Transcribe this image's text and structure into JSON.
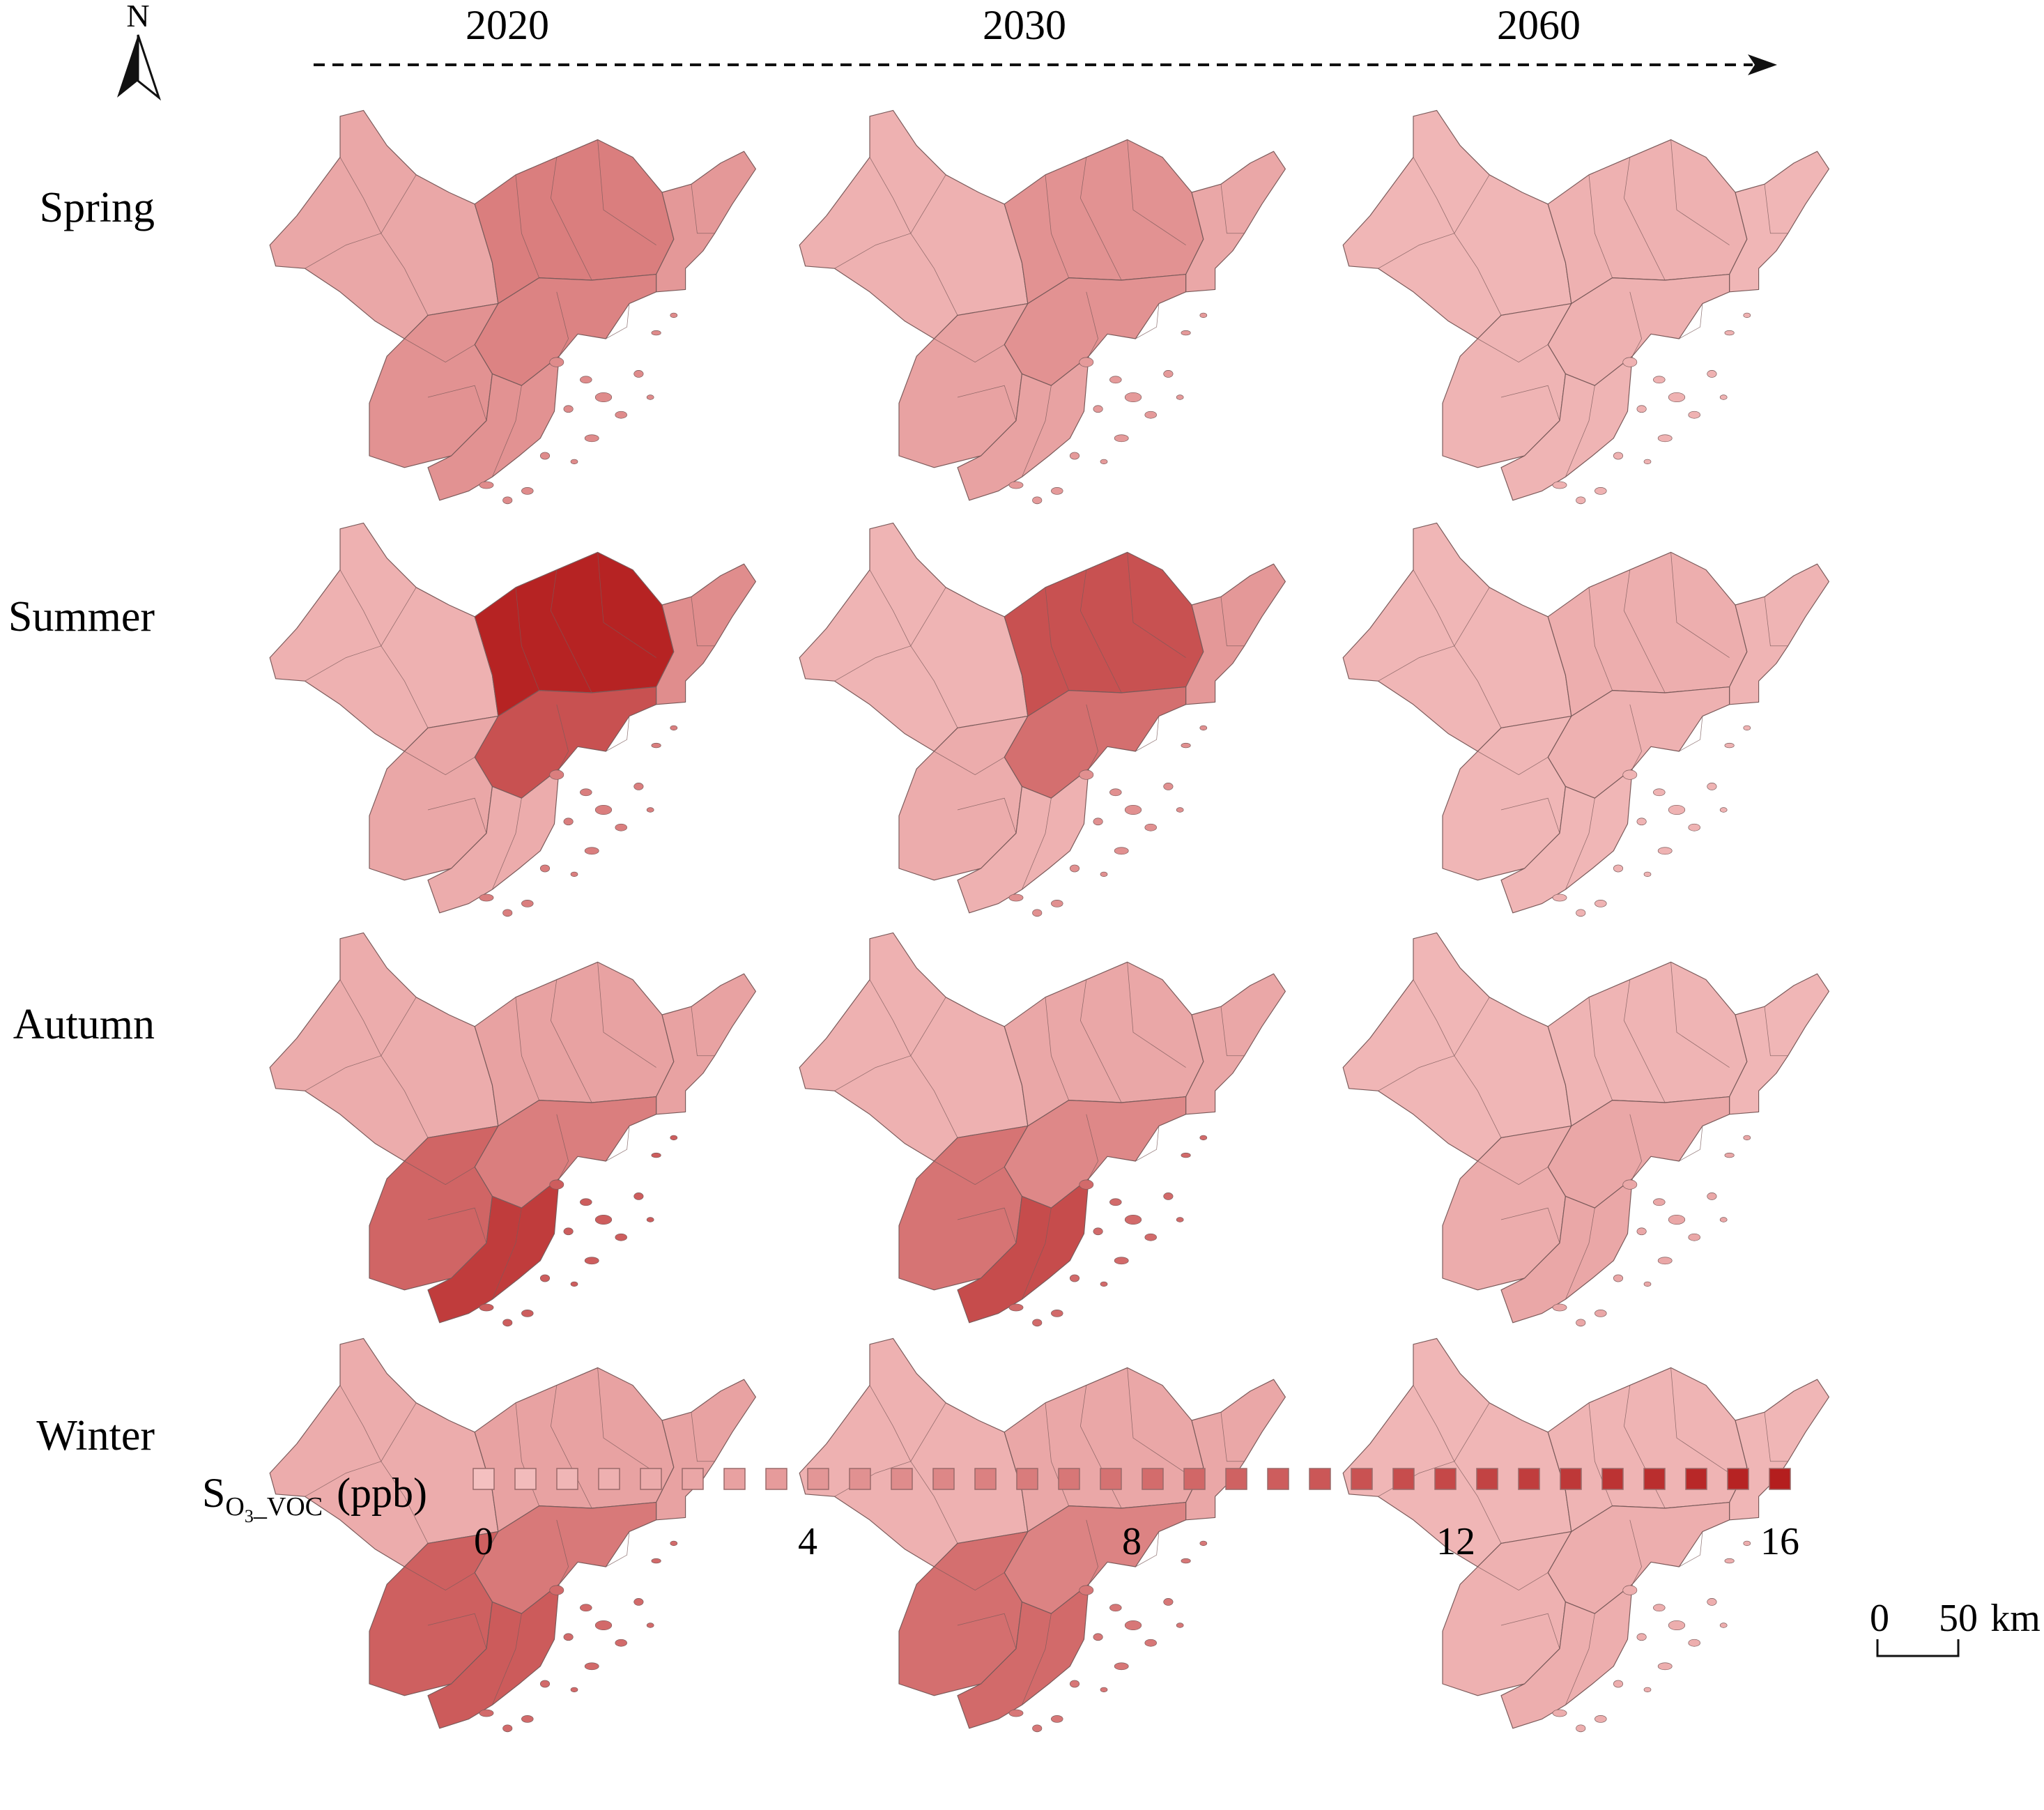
{
  "north_label": "N",
  "years": [
    "2020",
    "2030",
    "2060"
  ],
  "seasons": [
    "Spring",
    "Summer",
    "Autumn",
    "Winter"
  ],
  "scale_bar": {
    "zero": "0",
    "fifty": "50",
    "unit": "km"
  },
  "legend": {
    "label_main": "S",
    "label_sub": "O",
    "label_sub_num": "3",
    "label_sub_rest": "_VOC",
    "label_unit": "(ppb)",
    "ticks": [
      "0",
      "4",
      "8",
      "12",
      "16"
    ],
    "min": 0,
    "max": 16,
    "n_swatches": 32,
    "color_low": "#f4c0c0",
    "color_high": "#b41e1e"
  },
  "colors": {
    "boundary": "#7a5a5a",
    "arrow": "#111111"
  },
  "maps": [
    {
      "season": "Spring",
      "year": "2020",
      "levels": {
        "NW": 2.5,
        "NE": 6.5,
        "E": 4.0,
        "C": 6.0,
        "SW": 4.5,
        "S": 4.5
      }
    },
    {
      "season": "Spring",
      "year": "2030",
      "levels": {
        "NW": 1.5,
        "NE": 4.5,
        "E": 2.5,
        "C": 4.5,
        "SW": 3.0,
        "S": 3.0
      }
    },
    {
      "season": "Spring",
      "year": "2060",
      "levels": {
        "NW": 1.0,
        "NE": 1.5,
        "E": 1.0,
        "C": 1.5,
        "SW": 1.2,
        "S": 1.2
      }
    },
    {
      "season": "Summer",
      "year": "2020",
      "levels": {
        "NW": 1.5,
        "NE": 15.5,
        "E": 5.0,
        "C": 11.0,
        "SW": 2.5,
        "S": 2.0
      }
    },
    {
      "season": "Summer",
      "year": "2030",
      "levels": {
        "NW": 1.2,
        "NE": 11.0,
        "E": 4.0,
        "C": 8.0,
        "SW": 2.0,
        "S": 1.5
      }
    },
    {
      "season": "Summer",
      "year": "2060",
      "levels": {
        "NW": 1.0,
        "NE": 1.8,
        "E": 1.2,
        "C": 1.5,
        "SW": 1.0,
        "S": 1.0
      }
    },
    {
      "season": "Autumn",
      "year": "2020",
      "levels": {
        "NW": 2.0,
        "NE": 3.0,
        "E": 3.0,
        "C": 6.5,
        "SW": 9.0,
        "S": 13.0
      }
    },
    {
      "season": "Autumn",
      "year": "2030",
      "levels": {
        "NW": 1.5,
        "NE": 2.5,
        "E": 2.5,
        "C": 5.5,
        "SW": 7.5,
        "S": 11.5
      }
    },
    {
      "season": "Autumn",
      "year": "2060",
      "levels": {
        "NW": 1.0,
        "NE": 1.2,
        "E": 1.0,
        "C": 2.5,
        "SW": 2.0,
        "S": 2.5
      }
    },
    {
      "season": "Winter",
      "year": "2020",
      "levels": {
        "NW": 2.0,
        "NE": 3.0,
        "E": 3.0,
        "C": 7.0,
        "SW": 9.5,
        "S": 10.0
      }
    },
    {
      "season": "Winter",
      "year": "2030",
      "levels": {
        "NW": 1.5,
        "NE": 2.5,
        "E": 2.5,
        "C": 6.0,
        "SW": 8.0,
        "S": 8.5
      }
    },
    {
      "season": "Winter",
      "year": "2060",
      "levels": {
        "NW": 1.0,
        "NE": 1.2,
        "E": 1.0,
        "C": 1.8,
        "SW": 1.5,
        "S": 1.8
      }
    }
  ]
}
